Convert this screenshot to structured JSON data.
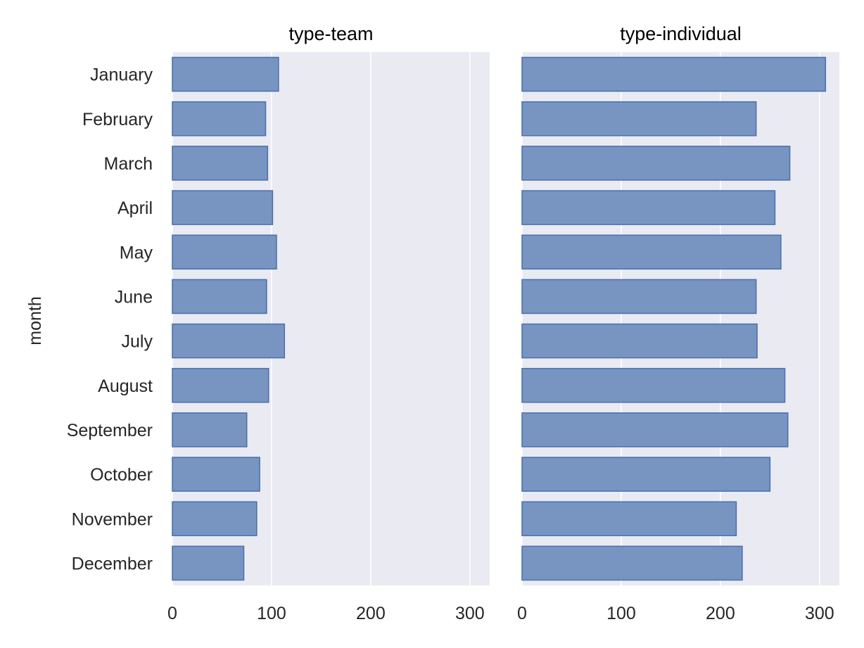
{
  "chart_data": {
    "type": "bar",
    "orientation": "horizontal",
    "ylabel": "month",
    "xlabel": "",
    "xlim": [
      0,
      320
    ],
    "x_ticks": [
      0,
      100,
      200,
      300
    ],
    "x_tick_labels": [
      "0",
      "100",
      "200",
      "300"
    ],
    "grid": true,
    "categories": [
      "January",
      "February",
      "March",
      "April",
      "May",
      "June",
      "July",
      "August",
      "September",
      "October",
      "November",
      "December"
    ],
    "panels": [
      {
        "title": "type-team",
        "values": [
          107,
          94,
          96,
          101,
          105,
          95,
          113,
          97,
          75,
          88,
          85,
          72
        ]
      },
      {
        "title": "type-individual",
        "values": [
          306,
          236,
          270,
          255,
          261,
          236,
          237,
          265,
          268,
          250,
          216,
          222
        ]
      }
    ]
  }
}
